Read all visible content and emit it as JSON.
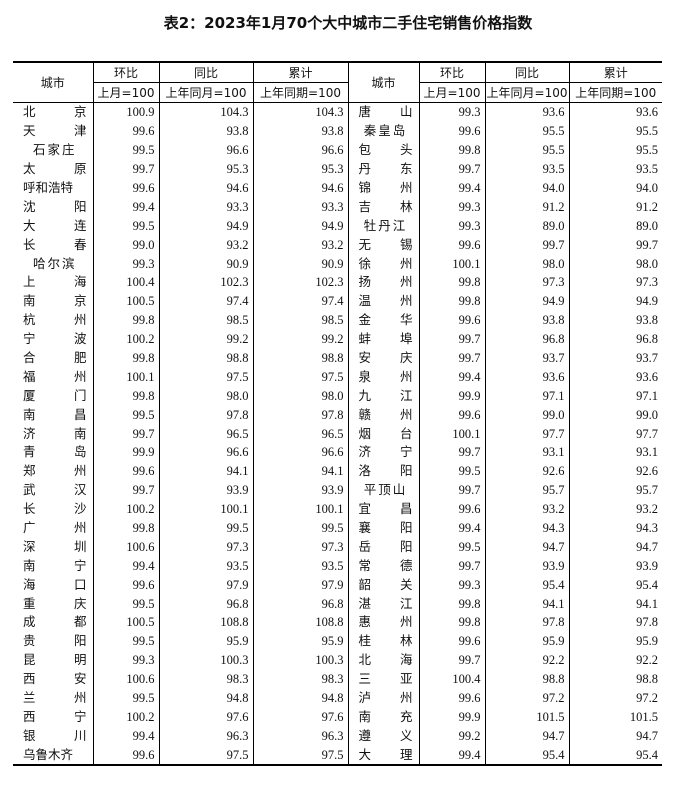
{
  "title": "表2：2023年1月70个大中城市二手住宅销售价格指数",
  "header": {
    "city": "城市",
    "mom": "环比",
    "yoy": "同比",
    "cum": "累计",
    "mom_base": "上月=100",
    "yoy_base": "上年同月=100",
    "cum_base": "上年同期=100"
  },
  "left_rows": [
    [
      "北京",
      "100.9",
      "104.3",
      "104.3"
    ],
    [
      "天津",
      "99.6",
      "93.8",
      "93.8"
    ],
    [
      "石家庄",
      "99.5",
      "96.6",
      "96.6"
    ],
    [
      "太原",
      "99.7",
      "95.3",
      "95.3"
    ],
    [
      "呼和浩特",
      "99.6",
      "94.6",
      "94.6"
    ],
    [
      "沈阳",
      "99.4",
      "93.3",
      "93.3"
    ],
    [
      "大连",
      "99.5",
      "94.9",
      "94.9"
    ],
    [
      "长春",
      "99.0",
      "93.2",
      "93.2"
    ],
    [
      "哈尔滨",
      "99.3",
      "90.9",
      "90.9"
    ],
    [
      "上海",
      "100.4",
      "102.3",
      "102.3"
    ],
    [
      "南京",
      "100.5",
      "97.4",
      "97.4"
    ],
    [
      "杭州",
      "99.8",
      "98.5",
      "98.5"
    ],
    [
      "宁波",
      "100.2",
      "99.2",
      "99.2"
    ],
    [
      "合肥",
      "99.8",
      "98.8",
      "98.8"
    ],
    [
      "福州",
      "100.1",
      "97.5",
      "97.5"
    ],
    [
      "厦门",
      "99.8",
      "98.0",
      "98.0"
    ],
    [
      "南昌",
      "99.5",
      "97.8",
      "97.8"
    ],
    [
      "济南",
      "99.7",
      "96.5",
      "96.5"
    ],
    [
      "青岛",
      "99.9",
      "96.6",
      "96.6"
    ],
    [
      "郑州",
      "99.6",
      "94.1",
      "94.1"
    ],
    [
      "武汉",
      "99.7",
      "93.9",
      "93.9"
    ],
    [
      "长沙",
      "100.2",
      "100.1",
      "100.1"
    ],
    [
      "广州",
      "99.8",
      "99.5",
      "99.5"
    ],
    [
      "深圳",
      "100.6",
      "97.3",
      "97.3"
    ],
    [
      "南宁",
      "99.4",
      "93.5",
      "93.5"
    ],
    [
      "海口",
      "99.6",
      "97.9",
      "97.9"
    ],
    [
      "重庆",
      "99.5",
      "96.8",
      "96.8"
    ],
    [
      "成都",
      "100.5",
      "108.8",
      "108.8"
    ],
    [
      "贵阳",
      "99.5",
      "95.9",
      "95.9"
    ],
    [
      "昆明",
      "99.3",
      "100.3",
      "100.3"
    ],
    [
      "西安",
      "100.6",
      "98.3",
      "98.3"
    ],
    [
      "兰州",
      "99.5",
      "94.8",
      "94.8"
    ],
    [
      "西宁",
      "100.2",
      "97.6",
      "97.6"
    ],
    [
      "银川",
      "99.4",
      "96.3",
      "96.3"
    ],
    [
      "乌鲁木齐",
      "99.6",
      "97.5",
      "97.5"
    ]
  ],
  "right_rows": [
    [
      "唐山",
      "99.3",
      "93.6",
      "93.6"
    ],
    [
      "秦皇岛",
      "99.6",
      "95.5",
      "95.5"
    ],
    [
      "包头",
      "99.8",
      "95.5",
      "95.5"
    ],
    [
      "丹东",
      "99.7",
      "93.5",
      "93.5"
    ],
    [
      "锦州",
      "99.4",
      "94.0",
      "94.0"
    ],
    [
      "吉林",
      "99.3",
      "91.2",
      "91.2"
    ],
    [
      "牡丹江",
      "99.3",
      "89.0",
      "89.0"
    ],
    [
      "无锡",
      "99.6",
      "99.7",
      "99.7"
    ],
    [
      "徐州",
      "100.1",
      "98.0",
      "98.0"
    ],
    [
      "扬州",
      "99.8",
      "97.3",
      "97.3"
    ],
    [
      "温州",
      "99.8",
      "94.9",
      "94.9"
    ],
    [
      "金华",
      "99.6",
      "93.8",
      "93.8"
    ],
    [
      "蚌埠",
      "99.7",
      "96.8",
      "96.8"
    ],
    [
      "安庆",
      "99.7",
      "93.7",
      "93.7"
    ],
    [
      "泉州",
      "99.4",
      "93.6",
      "93.6"
    ],
    [
      "九江",
      "99.9",
      "97.1",
      "97.1"
    ],
    [
      "赣州",
      "99.6",
      "99.0",
      "99.0"
    ],
    [
      "烟台",
      "100.1",
      "97.7",
      "97.7"
    ],
    [
      "济宁",
      "99.7",
      "93.1",
      "93.1"
    ],
    [
      "洛阳",
      "99.5",
      "92.6",
      "92.6"
    ],
    [
      "平顶山",
      "99.7",
      "95.7",
      "95.7"
    ],
    [
      "宜昌",
      "99.6",
      "93.2",
      "93.2"
    ],
    [
      "襄阳",
      "99.4",
      "94.3",
      "94.3"
    ],
    [
      "岳阳",
      "99.5",
      "94.7",
      "94.7"
    ],
    [
      "常德",
      "99.7",
      "93.9",
      "93.9"
    ],
    [
      "韶关",
      "99.3",
      "95.4",
      "95.4"
    ],
    [
      "湛江",
      "99.8",
      "94.1",
      "94.1"
    ],
    [
      "惠州",
      "99.8",
      "97.8",
      "97.8"
    ],
    [
      "桂林",
      "99.6",
      "95.9",
      "95.9"
    ],
    [
      "北海",
      "99.7",
      "92.2",
      "92.2"
    ],
    [
      "三亚",
      "100.4",
      "98.8",
      "98.8"
    ],
    [
      "泸州",
      "99.6",
      "97.2",
      "97.2"
    ],
    [
      "南充",
      "99.9",
      "101.5",
      "101.5"
    ],
    [
      "遵义",
      "99.2",
      "94.7",
      "94.7"
    ],
    [
      "大理",
      "99.4",
      "95.4",
      "95.4"
    ]
  ]
}
